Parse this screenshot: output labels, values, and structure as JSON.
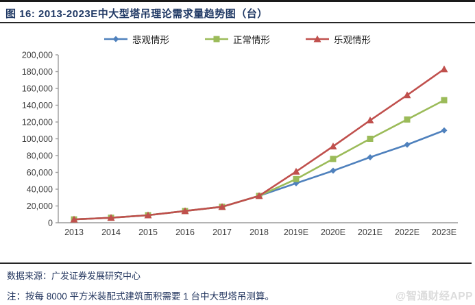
{
  "header": {
    "title": "图  16:  2013-2023E中大型塔吊理论需求量趋势图（台）"
  },
  "colors": {
    "title_navy": "#1F3864",
    "footer_navy": "#23365F",
    "axis_line": "#9b9b9b",
    "axis_text": "#3d3d3d",
    "watermark_gray": "#dcdcdc"
  },
  "chart_data": {
    "type": "line",
    "title": "2013-2023E中大型塔吊理论需求量趋势图（台）",
    "categories": [
      "2013",
      "2014",
      "2015",
      "2016",
      "2017",
      "2018",
      "2019E",
      "2020E",
      "2021E",
      "2022E",
      "2023E"
    ],
    "series": [
      {
        "key": "pessimistic",
        "name": "悲观情形",
        "color": "#4F81BD",
        "marker": "diamond",
        "values": [
          4000,
          6000,
          9000,
          14000,
          19000,
          32000,
          47000,
          62000,
          78000,
          93000,
          110000
        ]
      },
      {
        "key": "normal",
        "name": "正常情形",
        "color": "#9BBB59",
        "marker": "square",
        "values": [
          4000,
          6000,
          9000,
          14000,
          19000,
          32000,
          52000,
          76000,
          100000,
          123000,
          146000
        ]
      },
      {
        "key": "optimistic",
        "name": "乐观情形",
        "color": "#C0504D",
        "marker": "triangle",
        "values": [
          4000,
          6000,
          9000,
          14000,
          19000,
          32000,
          61000,
          91000,
          122000,
          152000,
          183000
        ]
      }
    ],
    "ylim": [
      0,
      200000
    ],
    "y_step": 20000,
    "y_tick_labels": [
      "0",
      "20,000",
      "40,000",
      "60,000",
      "80,000",
      "100,000",
      "120,000",
      "140,000",
      "160,000",
      "180,000",
      "200,000"
    ],
    "grid": false,
    "legend_position": "top"
  },
  "footer": {
    "source": "数据来源：广发证券发展研究中心",
    "note": "注：按每 8000 平方米装配式建筑面积需要 1 台中大型塔吊测算。"
  },
  "watermark": "@智通财经APP"
}
